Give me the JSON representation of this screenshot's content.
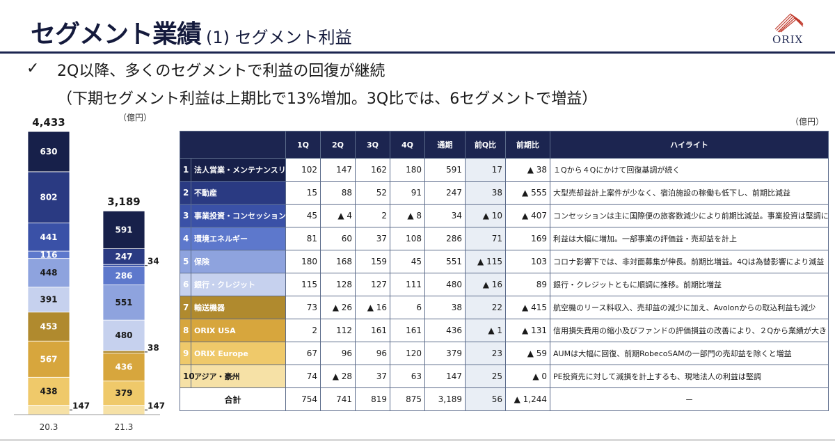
{
  "header": {
    "title": "セグメント業績",
    "subtitle": "(1) セグメント利益",
    "logo_text": "ORIX"
  },
  "bullets": {
    "check": "✓",
    "line1": "2Q以降、多くのセグメントで利益の回復が継続",
    "line2": "（下期セグメント利益は上期比で13%増加。3Q比では、6セグメントで増益）"
  },
  "units": {
    "left": "（億円）",
    "right": "（億円）"
  },
  "colors": {
    "seg1": "#17204a",
    "seg2": "#2a3a82",
    "seg3": "#3a51a7",
    "seg4": "#5d78cc",
    "seg5": "#8ea3de",
    "seg6": "#c6d1ee",
    "seg7": "#b08a2e",
    "seg8": "#d7a63d",
    "seg9": "#efc96a",
    "seg10": "#f6e1a6",
    "header": "#1c2550"
  },
  "chart_data": {
    "type": "bar",
    "stacked": true,
    "categories": [
      "20.3",
      "21.3"
    ],
    "totals": [
      "4,433",
      "3,189"
    ],
    "series": [
      {
        "name": "法人営業・メンテナンスリース",
        "values": [
          630,
          591
        ],
        "labels": [
          "630",
          "591"
        ]
      },
      {
        "name": "不動産",
        "values": [
          802,
          247
        ],
        "labels": [
          "802",
          "247"
        ]
      },
      {
        "name": "事業投資・コンセッション",
        "values": [
          441,
          34
        ],
        "labels": [
          "441",
          "34"
        ]
      },
      {
        "name": "環境エネルギー",
        "values": [
          116,
          286
        ],
        "labels": [
          "116",
          "286"
        ]
      },
      {
        "name": "保険",
        "values": [
          448,
          551
        ],
        "labels": [
          "448",
          "551"
        ]
      },
      {
        "name": "銀行・クレジット",
        "values": [
          391,
          480
        ],
        "labels": [
          "391",
          "480"
        ]
      },
      {
        "name": "輸送機器",
        "values": [
          453,
          38
        ],
        "labels": [
          "453",
          "38"
        ]
      },
      {
        "name": "ORIX USA",
        "values": [
          567,
          436
        ],
        "labels": [
          "567",
          "436"
        ]
      },
      {
        "name": "ORIX Europe",
        "values": [
          438,
          379
        ],
        "labels": [
          "438",
          "379"
        ]
      },
      {
        "name": "アジア・豪州",
        "values": [
          147,
          147
        ],
        "labels": [
          "147",
          "147"
        ]
      }
    ]
  },
  "table": {
    "headers": [
      "1Q",
      "2Q",
      "3Q",
      "4Q",
      "通期",
      "前Q比",
      "前期比",
      "ハイライト"
    ],
    "rows": [
      {
        "no": "1",
        "name": "法人営業・メンテナンスリース",
        "q1": "102",
        "q2": "147",
        "q3": "162",
        "q4": "180",
        "fy": "591",
        "qoq": "17",
        "yoy": "▲ 38",
        "hl": "１Qから４Qにかけて回復基調が続く"
      },
      {
        "no": "2",
        "name": "不動産",
        "q1": "15",
        "q2": "88",
        "q3": "52",
        "q4": "91",
        "fy": "247",
        "qoq": "38",
        "yoy": "▲ 555",
        "hl": "大型売却益計上案件が少なく、宿泊施設の稼働も低下し、前期比減益"
      },
      {
        "no": "3",
        "name": "事業投資・コンセッション",
        "q1": "45",
        "q2": "▲ 4",
        "q3": "2",
        "q4": "▲ 8",
        "fy": "34",
        "qoq": "▲ 10",
        "yoy": "▲ 407",
        "hl": "コンセッションは主に国際便の旅客数減少により前期比減益。事業投資は堅調に推移"
      },
      {
        "no": "4",
        "name": "環境エネルギー",
        "q1": "81",
        "q2": "60",
        "q3": "37",
        "q4": "108",
        "fy": "286",
        "qoq": "71",
        "yoy": "169",
        "hl": "利益は大幅に増加。一部事業の評価益・売却益を計上"
      },
      {
        "no": "5",
        "name": "保険",
        "q1": "180",
        "q2": "168",
        "q3": "159",
        "q4": "45",
        "fy": "551",
        "qoq": "▲ 115",
        "yoy": "103",
        "hl": "コロナ影響下では、非対面募集が伸長。前期比増益。4Qは為替影響により減益"
      },
      {
        "no": "6",
        "name": "銀行・クレジット",
        "q1": "115",
        "q2": "128",
        "q3": "127",
        "q4": "111",
        "fy": "480",
        "qoq": "▲ 16",
        "yoy": "89",
        "hl": "銀行・クレジットともに順調に推移。前期比増益"
      },
      {
        "no": "7",
        "name": "輸送機器",
        "q1": "73",
        "q2": "▲ 26",
        "q3": "▲ 16",
        "q4": "6",
        "fy": "38",
        "qoq": "22",
        "yoy": "▲ 415",
        "hl": "航空機のリース料収入、売却益の減少に加え、Avolonからの取込利益も減少"
      },
      {
        "no": "8",
        "name": "ORIX USA",
        "q1": "2",
        "q2": "112",
        "q3": "161",
        "q4": "161",
        "fy": "436",
        "qoq": "▲ 1",
        "yoy": "▲ 131",
        "hl": "信用損失費用の縮小及びファンドの評価損益の改善により、２Qから業績が大きく回復"
      },
      {
        "no": "9",
        "name": "ORIX Europe",
        "q1": "67",
        "q2": "96",
        "q3": "96",
        "q4": "120",
        "fy": "379",
        "qoq": "23",
        "yoy": "▲ 59",
        "hl": "AUMは大幅に回復、前期RobecoSAMの一部門の売却益を除くと増益"
      },
      {
        "no": "10",
        "name": "アジア・豪州",
        "q1": "74",
        "q2": "▲ 28",
        "q3": "37",
        "q4": "63",
        "fy": "147",
        "qoq": "25",
        "yoy": "▲ 0",
        "hl": "PE投資先に対して減損を計上するも、現地法人の利益は堅調"
      }
    ],
    "total": {
      "label": "合計",
      "q1": "754",
      "q2": "741",
      "q3": "819",
      "q4": "875",
      "fy": "3,189",
      "qoq": "56",
      "yoy": "▲ 1,244",
      "hl": "－"
    }
  }
}
